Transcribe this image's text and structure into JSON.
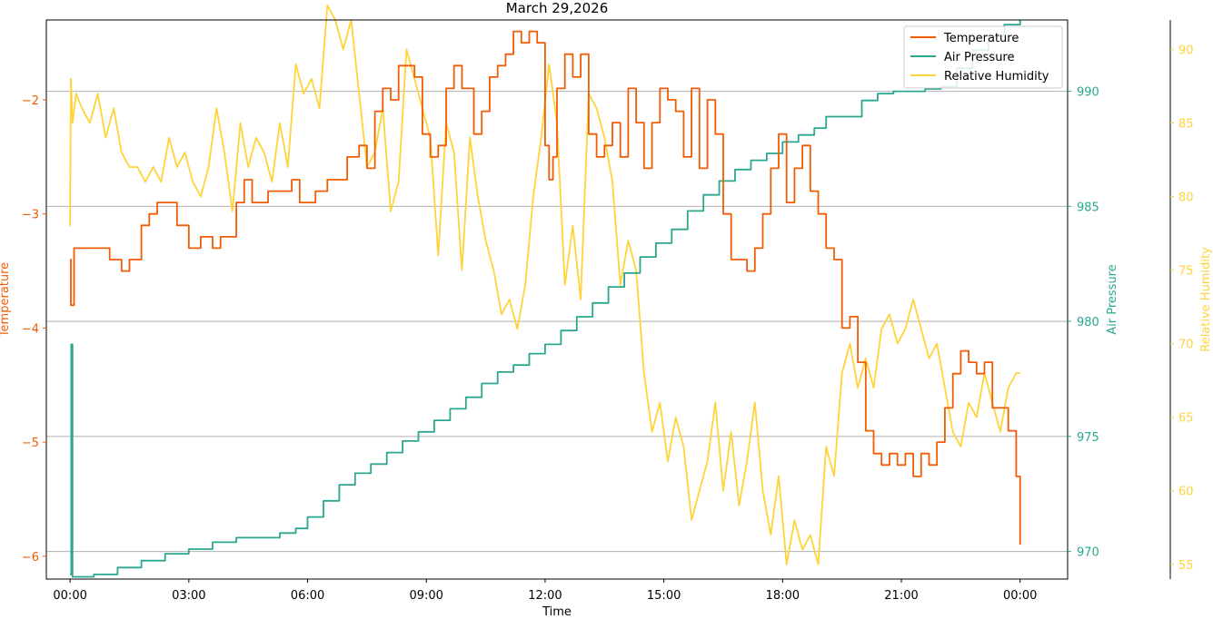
{
  "chart_data": {
    "type": "line",
    "title": "March 29,2026",
    "xlabel": "Time",
    "x_unit": "hours",
    "xlim": [
      -0.6,
      25.2
    ],
    "x_ticks": [
      0,
      3,
      6,
      9,
      12,
      15,
      18,
      21,
      24
    ],
    "x_tick_labels": [
      "00:00",
      "03:00",
      "06:00",
      "09:00",
      "12:00",
      "15:00",
      "18:00",
      "21:00",
      "00:00"
    ],
    "grid": "horizontal lines at Air Pressure ticks",
    "legend_position": "top-right",
    "colors": {
      "temperature": "#f25c05",
      "pressure": "#2aa78f",
      "humidity": "#ffd33a"
    },
    "axes": {
      "temperature": {
        "label": "Temperature",
        "side": "left",
        "ylim": [
          -6.2,
          -1.3
        ],
        "ticks": [
          -6,
          -5,
          -4,
          -3,
          -2
        ],
        "tick_labels": [
          "−6",
          "−5",
          "−4",
          "−3",
          "−2"
        ]
      },
      "pressure": {
        "label": "Air Pressure",
        "side": "right",
        "ylim": [
          968.8,
          993.1
        ],
        "ticks": [
          970,
          975,
          980,
          985,
          990
        ],
        "tick_labels": [
          "970",
          "975",
          "980",
          "985",
          "990"
        ]
      },
      "humidity": {
        "label": "Relative Humidity",
        "side": "right-outer",
        "ylim": [
          54,
          92
        ],
        "ticks": [
          55,
          60,
          65,
          70,
          75,
          80,
          85,
          90
        ],
        "tick_labels": [
          "55",
          "60",
          "65",
          "70",
          "75",
          "80",
          "85",
          "90"
        ]
      }
    },
    "series": [
      {
        "name": "Temperature",
        "axis": "temperature",
        "x": [
          0,
          0.02,
          0.1,
          0.5,
          1.0,
          1.3,
          1.5,
          1.8,
          2.0,
          2.2,
          2.5,
          2.7,
          3.0,
          3.3,
          3.6,
          3.8,
          4.0,
          4.2,
          4.4,
          4.6,
          4.8,
          5.0,
          5.3,
          5.6,
          5.8,
          6.0,
          6.2,
          6.5,
          6.8,
          7.0,
          7.3,
          7.5,
          7.7,
          7.9,
          8.1,
          8.3,
          8.5,
          8.7,
          8.9,
          9.1,
          9.3,
          9.5,
          9.7,
          9.9,
          10.2,
          10.4,
          10.6,
          10.8,
          11.0,
          11.2,
          11.4,
          11.6,
          11.8,
          12.0,
          12.1,
          12.2,
          12.3,
          12.5,
          12.7,
          12.9,
          13.1,
          13.3,
          13.5,
          13.7,
          13.9,
          14.1,
          14.3,
          14.5,
          14.7,
          14.9,
          15.1,
          15.3,
          15.5,
          15.7,
          15.9,
          16.1,
          16.3,
          16.5,
          16.7,
          16.9,
          17.1,
          17.3,
          17.5,
          17.7,
          17.9,
          18.1,
          18.3,
          18.5,
          18.7,
          18.9,
          19.1,
          19.3,
          19.5,
          19.7,
          19.9,
          20.1,
          20.3,
          20.5,
          20.7,
          20.9,
          21.1,
          21.3,
          21.5,
          21.7,
          21.9,
          22.1,
          22.3,
          22.5,
          22.7,
          22.9,
          23.1,
          23.3,
          23.5,
          23.7,
          23.9,
          24.0
        ],
        "values": [
          -3.4,
          -3.8,
          -3.3,
          -3.3,
          -3.4,
          -3.5,
          -3.4,
          -3.1,
          -3.0,
          -2.9,
          -2.9,
          -3.1,
          -3.3,
          -3.2,
          -3.3,
          -3.2,
          -3.2,
          -2.9,
          -2.7,
          -2.9,
          -2.9,
          -2.8,
          -2.8,
          -2.7,
          -2.9,
          -2.9,
          -2.8,
          -2.7,
          -2.7,
          -2.5,
          -2.4,
          -2.6,
          -2.1,
          -1.9,
          -2.0,
          -1.7,
          -1.7,
          -1.8,
          -2.3,
          -2.5,
          -2.4,
          -1.9,
          -1.7,
          -1.9,
          -2.3,
          -2.1,
          -1.8,
          -1.7,
          -1.6,
          -1.4,
          -1.5,
          -1.4,
          -1.5,
          -2.4,
          -2.7,
          -2.5,
          -1.9,
          -1.6,
          -1.8,
          -1.6,
          -2.3,
          -2.5,
          -2.4,
          -2.2,
          -2.5,
          -1.9,
          -2.2,
          -2.6,
          -2.2,
          -1.9,
          -2.0,
          -2.1,
          -2.5,
          -1.9,
          -2.6,
          -2.0,
          -2.3,
          -3.0,
          -3.4,
          -3.4,
          -3.5,
          -3.3,
          -3.0,
          -2.6,
          -2.3,
          -2.9,
          -2.6,
          -2.4,
          -2.8,
          -3.0,
          -3.3,
          -3.4,
          -4.0,
          -3.9,
          -4.3,
          -4.9,
          -5.1,
          -5.2,
          -5.1,
          -5.2,
          -5.1,
          -5.3,
          -5.1,
          -5.2,
          -5.0,
          -4.7,
          -4.4,
          -4.2,
          -4.3,
          -4.4,
          -4.3,
          -4.7,
          -4.7,
          -4.9,
          -5.3,
          -5.9
        ]
      },
      {
        "name": "Air Pressure",
        "axis": "pressure",
        "x": [
          0,
          0.03,
          0.06,
          0.1,
          0.6,
          1.2,
          1.8,
          2.4,
          3.0,
          3.6,
          4.2,
          4.8,
          5.3,
          5.7,
          6.0,
          6.4,
          6.8,
          7.2,
          7.6,
          8.0,
          8.4,
          8.8,
          9.2,
          9.6,
          10.0,
          10.4,
          10.8,
          11.2,
          11.6,
          12.0,
          12.4,
          12.8,
          13.2,
          13.6,
          14.0,
          14.4,
          14.8,
          15.2,
          15.6,
          16.0,
          16.4,
          16.8,
          17.2,
          17.6,
          18.0,
          18.4,
          18.8,
          19.1,
          19.4,
          19.7,
          20.0,
          20.4,
          20.8,
          21.2,
          21.6,
          22.0,
          22.4,
          22.8,
          23.2,
          23.6,
          24.0
        ],
        "values": [
          969.0,
          979.0,
          968.9,
          968.9,
          969.0,
          969.3,
          969.6,
          969.9,
          970.1,
          970.4,
          970.6,
          970.6,
          970.8,
          971.0,
          971.5,
          972.2,
          972.9,
          973.4,
          973.8,
          974.3,
          974.8,
          975.2,
          975.7,
          976.2,
          976.7,
          977.3,
          977.8,
          978.1,
          978.6,
          979.0,
          979.6,
          980.2,
          980.8,
          981.5,
          982.1,
          982.8,
          983.4,
          984.0,
          984.8,
          985.5,
          986.1,
          986.6,
          987.0,
          987.3,
          987.8,
          988.1,
          988.4,
          988.9,
          988.9,
          988.9,
          989.6,
          989.9,
          990.0,
          990.0,
          990.1,
          990.2,
          991.0,
          991.8,
          992.4,
          992.9,
          993.1
        ]
      },
      {
        "name": "Relative Humidity",
        "axis": "humidity",
        "x": [
          0,
          0.02,
          0.06,
          0.15,
          0.3,
          0.5,
          0.7,
          0.9,
          1.1,
          1.3,
          1.5,
          1.7,
          1.9,
          2.1,
          2.3,
          2.5,
          2.7,
          2.9,
          3.1,
          3.3,
          3.5,
          3.7,
          3.9,
          4.1,
          4.3,
          4.5,
          4.7,
          4.9,
          5.1,
          5.3,
          5.5,
          5.7,
          5.9,
          6.1,
          6.3,
          6.5,
          6.7,
          6.9,
          7.1,
          7.3,
          7.5,
          7.7,
          7.9,
          8.1,
          8.3,
          8.5,
          8.7,
          8.9,
          9.1,
          9.3,
          9.5,
          9.7,
          9.9,
          10.1,
          10.3,
          10.5,
          10.7,
          10.9,
          11.1,
          11.3,
          11.5,
          11.7,
          11.9,
          12.1,
          12.3,
          12.5,
          12.7,
          12.9,
          13.1,
          13.3,
          13.5,
          13.7,
          13.9,
          14.1,
          14.3,
          14.5,
          14.7,
          14.9,
          15.1,
          15.3,
          15.5,
          15.7,
          15.9,
          16.1,
          16.3,
          16.5,
          16.7,
          16.9,
          17.1,
          17.3,
          17.5,
          17.7,
          17.9,
          18.1,
          18.3,
          18.5,
          18.7,
          18.9,
          19.1,
          19.3,
          19.5,
          19.7,
          19.9,
          20.1,
          20.3,
          20.5,
          20.7,
          20.9,
          21.1,
          21.3,
          21.5,
          21.7,
          21.9,
          22.1,
          22.3,
          22.5,
          22.7,
          22.9,
          23.1,
          23.3,
          23.5,
          23.7,
          23.9,
          24.0
        ],
        "values": [
          78,
          88,
          85,
          87,
          86,
          85,
          87,
          84,
          86,
          83,
          82,
          82,
          81,
          82,
          81,
          84,
          82,
          83,
          81,
          80,
          82,
          86,
          83,
          79,
          85,
          82,
          84,
          83,
          81,
          85,
          82,
          89,
          87,
          88,
          86,
          93,
          92,
          90,
          92,
          87,
          82,
          83,
          86,
          79,
          81,
          90,
          88,
          86,
          84,
          76,
          85,
          83,
          75,
          84,
          80,
          77,
          75,
          72,
          73,
          71,
          74,
          80,
          84,
          89,
          85,
          74,
          78,
          73,
          87,
          86,
          84,
          81,
          74,
          77,
          75,
          68,
          64,
          66,
          62,
          65,
          63,
          58,
          60,
          62,
          66,
          60,
          64,
          59,
          62,
          66,
          60,
          57,
          61,
          55,
          58,
          56,
          57,
          55,
          63,
          61,
          68,
          70,
          67,
          69,
          67,
          71,
          72,
          70,
          71,
          73,
          71,
          69,
          70,
          67,
          64,
          63,
          66,
          65,
          68,
          66,
          64,
          67,
          68,
          68
        ]
      }
    ]
  }
}
